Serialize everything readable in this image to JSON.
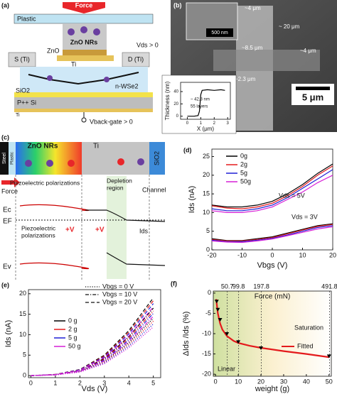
{
  "panel_a": {
    "label": "(a)",
    "force": "Force",
    "plastic": "Plastic",
    "zno_nrs": "ZnO NRs",
    "zno": "ZnO",
    "source": "S (Ti)",
    "drain": "D (Ti)",
    "ti": "Ti",
    "vds": "Vds > 0",
    "sio2": "SiO2",
    "channel": "n-WSe2",
    "substrate": "P++ Si",
    "gate_metal": "Ti",
    "gate_voltage": "Vback-gate > 0"
  },
  "panel_b": {
    "label": "(b)",
    "inset_scale": "500 nm",
    "dims": [
      "~4 μm",
      "~ 20 μm",
      "~8.5 μm",
      "~4 μm",
      "~2.3 μm"
    ],
    "scale_bar": "5 μm"
  },
  "panel_c": {
    "label": "(c)",
    "zno_nrs": "ZnO NRs",
    "ti": "Ti",
    "steel": "Steel",
    "plastic": "Plastic",
    "sio2": "SiO2",
    "force": "Force",
    "polarization_top": [
      "Piezoelectric polarizations"
    ],
    "depletion": [
      "Depletion",
      "region"
    ],
    "channel": "Channel",
    "ec": "Ec",
    "ef": "EF",
    "polarization_bottom": [
      "Piezoelectric",
      "polarizations"
    ],
    "plus_v": [
      "+V",
      "+V"
    ],
    "ids": "Ids",
    "ev": "Ev"
  },
  "chart_data": [
    {
      "type": "line",
      "xlabel": "X (μm)",
      "ylabel": "Thickness (nm)",
      "x": [
        0,
        0.5,
        0.8,
        0.9,
        1.0,
        1.1,
        1.5,
        2,
        2.5,
        2.8
      ],
      "series": [
        {
          "color": "#000000",
          "values": [
            0,
            0,
            1,
            8,
            35,
            42,
            43,
            42,
            43,
            42
          ]
        }
      ],
      "xlim": [
        -0.5,
        3.2
      ],
      "ylim": [
        -5,
        55
      ],
      "xticks": [
        0,
        1,
        2,
        3
      ],
      "yticks": [
        0,
        20,
        40
      ],
      "annotations": [
        "~ 42.3 nm",
        "55 layers"
      ]
    },
    {
      "type": "line",
      "label": "(d)",
      "xlabel": "Vbgs (V)",
      "ylabel": "Ids (nA)",
      "x": [
        -20,
        -15,
        -10,
        -5,
        0,
        5,
        10,
        15,
        20
      ],
      "series": [
        {
          "name": "0g",
          "color": "#000000",
          "values": [
            12,
            11.5,
            11.5,
            12,
            13,
            15,
            17.5,
            20.5,
            23
          ],
          "values_low": [
            3,
            2.5,
            2.5,
            3,
            3.5,
            4.5,
            5.5,
            6.5,
            7
          ]
        },
        {
          "name": "2g",
          "color": "#e41a1c",
          "values": [
            11.8,
            11.2,
            11,
            11.5,
            12.5,
            14.5,
            17,
            20,
            22.5
          ],
          "values_low": [
            2.8,
            2.4,
            2.4,
            2.8,
            3.3,
            4.3,
            5.3,
            6.3,
            6.8
          ]
        },
        {
          "name": "5g",
          "color": "#1f1fd6",
          "values": [
            11,
            10.5,
            10.5,
            11,
            12,
            14,
            16.5,
            19,
            21.5
          ],
          "values_low": [
            2.6,
            2.2,
            2.2,
            2.6,
            3.1,
            4,
            5,
            6,
            6.5
          ]
        },
        {
          "name": "50g",
          "color": "#d61fd6",
          "values": [
            10.5,
            10,
            10,
            10.5,
            11.5,
            13.5,
            15.5,
            18,
            20
          ],
          "values_low": [
            2.4,
            2.1,
            2,
            2.4,
            2.9,
            3.8,
            4.7,
            5.6,
            6.2
          ]
        }
      ],
      "xlim": [
        -20,
        20
      ],
      "ylim": [
        0,
        27
      ],
      "xticks": [
        -20,
        -10,
        0,
        10,
        20
      ],
      "yticks": [
        0,
        5,
        10,
        15,
        20,
        25
      ],
      "annotations": [
        "Vds = 5V",
        "Vds = 3V"
      ]
    },
    {
      "type": "line",
      "label": "(e)",
      "xlabel": "Vds (V)",
      "ylabel": "Ids (nA)",
      "x": [
        0,
        1,
        2,
        3,
        4,
        5
      ],
      "line_styles": [
        {
          "name": "Vbgs = 0 V",
          "dash": "dotted"
        },
        {
          "name": "Vbgs = 10 V",
          "dash": "dash-dot"
        },
        {
          "name": "Vbgs = 20 V",
          "dash": "dashed"
        }
      ],
      "series": [
        {
          "name": "0 g",
          "color": "#000000",
          "curves": [
            [
              0,
              0.2,
              1,
              3.5,
              8,
              14
            ],
            [
              0,
              0.25,
              1.2,
              4.2,
              9.5,
              16.5
            ],
            [
              0,
              0.3,
              1.5,
              5,
              11,
              19
            ]
          ]
        },
        {
          "name": "2 g",
          "color": "#e41a1c",
          "curves": [
            [
              0,
              0.2,
              0.95,
              3.3,
              7.6,
              13.3
            ],
            [
              0,
              0.24,
              1.15,
              4,
              9.1,
              15.8
            ],
            [
              0,
              0.29,
              1.45,
              4.8,
              10.6,
              18.3
            ]
          ]
        },
        {
          "name": "5 g",
          "color": "#1f1fd6",
          "curves": [
            [
              0,
              0.18,
              0.9,
              3.1,
              7.2,
              12.6
            ],
            [
              0,
              0.22,
              1.1,
              3.8,
              8.7,
              15.2
            ],
            [
              0,
              0.27,
              1.4,
              4.6,
              10.2,
              17.6
            ]
          ]
        },
        {
          "name": "50 g",
          "color": "#d61fd6",
          "curves": [
            [
              0,
              0.17,
              0.85,
              2.9,
              6.8,
              11.9
            ],
            [
              0,
              0.2,
              1.05,
              3.6,
              8.3,
              14.5
            ],
            [
              0,
              0.25,
              1.3,
              4.4,
              9.7,
              16.8
            ]
          ]
        }
      ],
      "xlim": [
        -0.1,
        5.3
      ],
      "ylim": [
        -0.5,
        21
      ],
      "xticks": [
        0,
        1,
        2,
        3,
        4,
        5
      ],
      "yticks": [
        0,
        5,
        10,
        15,
        20
      ]
    },
    {
      "type": "line",
      "label": "(f)",
      "xlabel": "weight (g)",
      "ylabel": "ΔIds /Ids (%)",
      "x2label": "Force (mN)",
      "points": {
        "color": "#000000",
        "x": [
          0.5,
          1,
          2,
          5,
          10,
          20,
          50
        ],
        "values": [
          -2,
          -4,
          -6.5,
          -10,
          -12,
          -13.5,
          -15.5
        ]
      },
      "fit": {
        "name": "Fitted",
        "color": "#e41a1c",
        "x": [
          0.3,
          1,
          2,
          3,
          5,
          8,
          10,
          15,
          20,
          30,
          40,
          50
        ],
        "values": [
          -1.5,
          -5,
          -7.5,
          -9,
          -10.6,
          -11.8,
          -12.3,
          -13,
          -13.5,
          -14.3,
          -15,
          -15.8
        ]
      },
      "xlim": [
        -1,
        51
      ],
      "ylim": [
        -20.5,
        0.5
      ],
      "xticks": [
        0,
        10,
        20,
        30,
        40,
        50
      ],
      "yticks": [
        0,
        -5,
        -10,
        -15,
        -20
      ],
      "x2ticks": [
        {
          "value": 5.17,
          "label": "50.7"
        },
        {
          "value": 10.18,
          "label": "99.8"
        },
        {
          "value": 20.18,
          "label": "197.8"
        },
        {
          "value": 50.18,
          "label": "491.8"
        }
      ],
      "annotations": [
        "Linear",
        "Saturation"
      ]
    }
  ]
}
